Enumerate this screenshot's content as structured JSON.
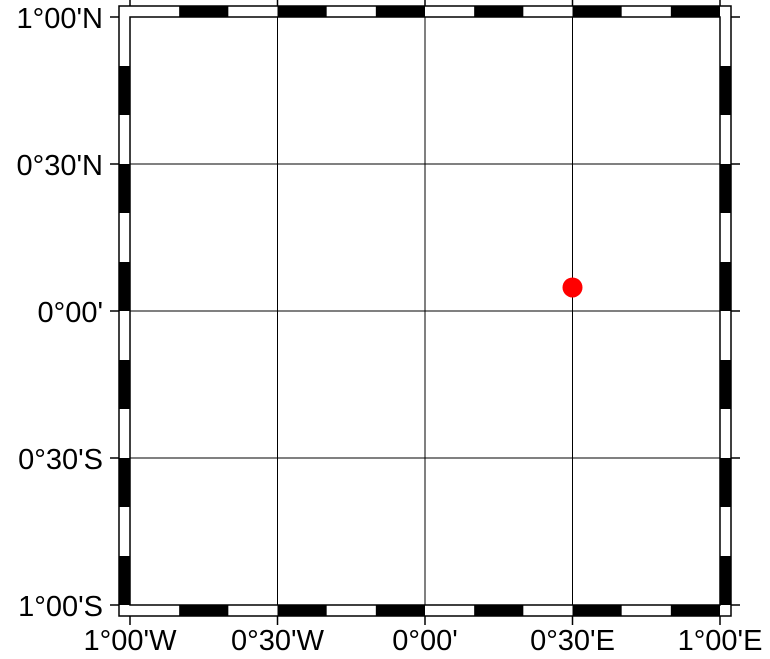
{
  "map": {
    "projection": "geographic",
    "lon_range": [
      -1,
      1
    ],
    "lat_range": [
      -1,
      1
    ],
    "grid": true,
    "frame_style": "checkerboard",
    "colors": {
      "frame_dark": "#000000",
      "frame_light": "#ffffff",
      "grid": "#000000",
      "point": "#ff0000"
    },
    "lon_ticks": [
      {
        "value": -1,
        "label": "1°00'W"
      },
      {
        "value": -0.5,
        "label": "0°30'W"
      },
      {
        "value": 0,
        "label": "0°00'"
      },
      {
        "value": 0.5,
        "label": "0°30'E"
      },
      {
        "value": 1,
        "label": "1°00'E"
      }
    ],
    "lat_ticks": [
      {
        "value": 1,
        "label": "1°00'N"
      },
      {
        "value": 0.5,
        "label": "0°30'N"
      },
      {
        "value": 0,
        "label": "0°00'"
      },
      {
        "value": -0.5,
        "label": "0°30'S"
      },
      {
        "value": -1,
        "label": "1°00'S"
      }
    ],
    "points": [
      {
        "lon": 0.5,
        "lat": 0.08
      }
    ]
  }
}
